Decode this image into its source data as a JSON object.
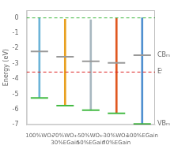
{
  "chart_data": {
    "type": "band",
    "ylabel": "Energy (eV)",
    "categories": [
      "100%WO₃",
      "70%WO₃-\n30%EGain",
      "50%WO₃-\n50%EGain",
      "30%WO₃-\n70%EGain",
      "100%EGain"
    ],
    "series": [
      {
        "type": "stem",
        "values": [
          0.0,
          -0.08,
          -0.12,
          -0.03,
          0.0
        ],
        "colors": [
          "#6cb4d8",
          "#e8a020",
          "#a8b8c0",
          "#e05820",
          "#5090d0"
        ]
      },
      {
        "type": "level",
        "values": [
          -2.2,
          -2.55,
          -2.85,
          -2.95,
          -2.45
        ],
        "color": "#999999"
      },
      {
        "type": "level",
        "values": [
          -5.25,
          -5.75,
          -6.05,
          -6.25,
          -6.95
        ],
        "color": "#44bb44"
      }
    ],
    "hlines": [
      {
        "y": 0.0,
        "color": "#44bb44",
        "line_style": "dashed"
      },
      {
        "y": -3.55,
        "color": "#dd2222",
        "line_style": "dashed"
      }
    ],
    "annotations": [
      {
        "text": "CBₘ",
        "y": -2.45
      },
      {
        "text": "Eⁱ",
        "y": -3.55
      },
      {
        "text": "VBₘ",
        "y": -6.95
      }
    ],
    "ylim": [
      -7,
      0.5
    ],
    "yticks": [
      0,
      -1,
      -2,
      -3,
      -4,
      -5,
      -6,
      -7
    ],
    "grid": false
  }
}
